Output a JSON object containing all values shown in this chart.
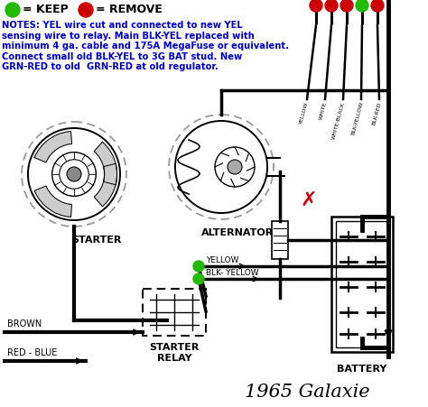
{
  "title": "1965 Galaxie",
  "title_fontsize": 15,
  "bg_color": "#ffffff",
  "legend_keep_color": "#22bb00",
  "legend_remove_color": "#cc0000",
  "legend_keep_text": "= KEEP",
  "legend_remove_text": "= REMOVE",
  "notes_text": "NOTES: YEL wire cut and connected to new YEL\nsensing wire to relay. Main BLK-YEL replaced with\nminimum 4 ga. cable and 175A MegaFuse or equivalent.\nConnect small old BLK-YEL to 3G BAT stud. New\nGRN-RED to old  GRN-RED at old regulator.",
  "notes_color": "#0000cc",
  "notes_fontsize": 7.2,
  "wire_labels_top": [
    "YELLOW",
    "WHITE",
    "WHITE-BLACK",
    "BLK-YELLOW",
    "BLK-RED"
  ],
  "wire_colors_top": [
    "#cc0000",
    "#cc0000",
    "#cc0000",
    "#22bb00",
    "#cc0000"
  ],
  "starter_label": "STARTER",
  "alternator_label": "ALTERNATOR",
  "relay_label": "STARTER\nRELAY",
  "battery_label": "BATTERY",
  "yellow_wire_label": "YELLOW",
  "blkyellow_wire_label": "BLK- YELLOW",
  "brown_label": "BROWN",
  "redblue_label": "RED - BLUE",
  "black": "#000000",
  "gray": "#999999",
  "wire_lw": 2.5,
  "bus_lw": 3.5
}
